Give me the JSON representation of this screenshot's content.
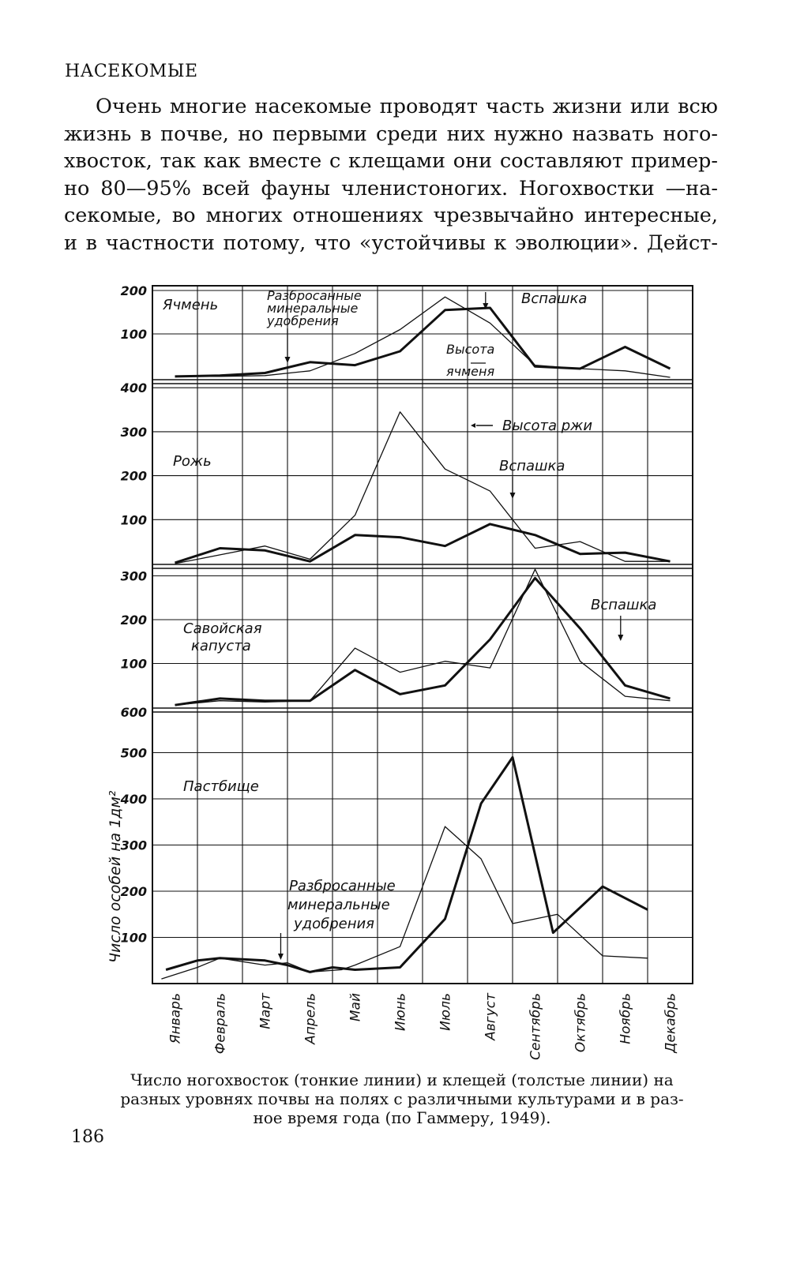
{
  "page": {
    "section_heading": "НАСЕКОМЫЕ",
    "body_lines": [
      "Очень многие насекомые проводят часть жизни или всю",
      "жизнь в почве, но первыми среди них нужно назвать ного-",
      "хвосток, так как вместе с клещами они составляют пример-",
      "но 80—95% всей фауны членистоногих. Ногохвостки —на-",
      "секомые, во многих отношениях чрезвычайно интересные,",
      "и в частности потому, что «устойчивы к эволюции». Дейст-"
    ],
    "figure_caption_lines": [
      "Число ногохвосток (тонкие линии) и клещей (толстые линии) на",
      "разных уровнях почвы на полях с различными культурами и в раз-",
      "ное время года (по Гаммеру, 1949)."
    ],
    "page_number": "186"
  },
  "chart_data": {
    "type": "line",
    "categories": [
      "Январь",
      "Февраль",
      "Март",
      "Апрель",
      "Май",
      "Июнь",
      "Июль",
      "Август",
      "Сентябрь",
      "Октябрь",
      "Ноябрь",
      "Декабрь"
    ],
    "ylabel": "Число особей на 1дм²",
    "series_styles": {
      "thin_stroke": "#111111",
      "thick_stroke": "#111111"
    },
    "panels": [
      {
        "name": "Ячмень",
        "yticks": [
          "200",
          "100"
        ],
        "ylim": [
          0,
          200
        ],
        "thin_x": [
          1,
          2,
          3,
          4,
          5,
          6,
          7,
          8,
          9,
          10,
          11,
          12
        ],
        "thin": [
          2,
          2,
          4,
          15,
          55,
          110,
          185,
          125,
          28,
          20,
          15,
          0
        ],
        "thick_x": [
          1,
          2,
          3,
          4,
          5,
          6,
          7,
          8,
          9,
          10,
          11,
          12
        ],
        "thick": [
          2,
          4,
          10,
          35,
          28,
          60,
          155,
          160,
          25,
          20,
          70,
          20
        ],
        "annotations": [
          {
            "lines": [
              "Разбросанные",
              "минеральные",
              "удобрения"
            ],
            "arrow_month": 3.5
          },
          {
            "lines": [
              "Вспашка"
            ],
            "arrow_month": 7.9
          },
          {
            "lines": [
              "Высота",
              "ячменя"
            ]
          }
        ]
      },
      {
        "name": "Рожь",
        "yticks": [
          "400",
          "300",
          "200",
          "100"
        ],
        "ylim": [
          0,
          400
        ],
        "thin_x": [
          1,
          2,
          3,
          4,
          5,
          6,
          7,
          8,
          9,
          10,
          11,
          12
        ],
        "thin": [
          0,
          20,
          40,
          10,
          110,
          345,
          215,
          165,
          35,
          50,
          5,
          5
        ],
        "thick_x": [
          1,
          2,
          3,
          4,
          5,
          6,
          7,
          8,
          9,
          10,
          11,
          12
        ],
        "thick": [
          2,
          35,
          30,
          5,
          65,
          60,
          40,
          90,
          65,
          22,
          25,
          5
        ],
        "annotations": [
          {
            "lines": [
              "Высота ржи"
            ]
          },
          {
            "lines": [
              "Вспашка"
            ],
            "arrow_month": 8.5
          }
        ]
      },
      {
        "name": "Савойская капуста",
        "yticks": [
          "300",
          "200",
          "100"
        ],
        "ylim": [
          0,
          300
        ],
        "thin_x": [
          1,
          2,
          3,
          4,
          5,
          6,
          7,
          8,
          9,
          10,
          11,
          12
        ],
        "thin": [
          5,
          15,
          12,
          15,
          135,
          80,
          105,
          90,
          315,
          105,
          25,
          15
        ],
        "thick_x": [
          1,
          2,
          3,
          4,
          5,
          6,
          7,
          8,
          9,
          10,
          11,
          12
        ],
        "thick": [
          5,
          20,
          15,
          15,
          85,
          30,
          50,
          155,
          295,
          180,
          50,
          20
        ],
        "annotations": [
          {
            "lines": [
              "Вспашка"
            ],
            "arrow_month": 10.9
          }
        ]
      },
      {
        "name": "Пастбище",
        "yticks": [
          "600",
          "500",
          "400",
          "300",
          "200",
          "100"
        ],
        "ylim": [
          0,
          600
        ],
        "thin_x": [
          0.7,
          1.5,
          2,
          3,
          3.5,
          4,
          4.7,
          5,
          6,
          7,
          7.8,
          8.5,
          9.5,
          10.5,
          11.5
        ],
        "thin": [
          10,
          35,
          55,
          40,
          45,
          25,
          30,
          40,
          80,
          340,
          270,
          130,
          150,
          60,
          55
        ],
        "thick_x": [
          0.8,
          1.5,
          2,
          3,
          3.5,
          4,
          4.5,
          5,
          6,
          7,
          7.8,
          8.5,
          9.4,
          10.5,
          11.5
        ],
        "thick": [
          30,
          50,
          55,
          50,
          40,
          25,
          35,
          30,
          35,
          140,
          390,
          490,
          110,
          210,
          160
        ],
        "annotations": [
          {
            "lines": [
              "Разбросанные",
              "минеральные",
              "удобрения"
            ],
            "arrow_month": 3.35
          }
        ]
      }
    ]
  }
}
